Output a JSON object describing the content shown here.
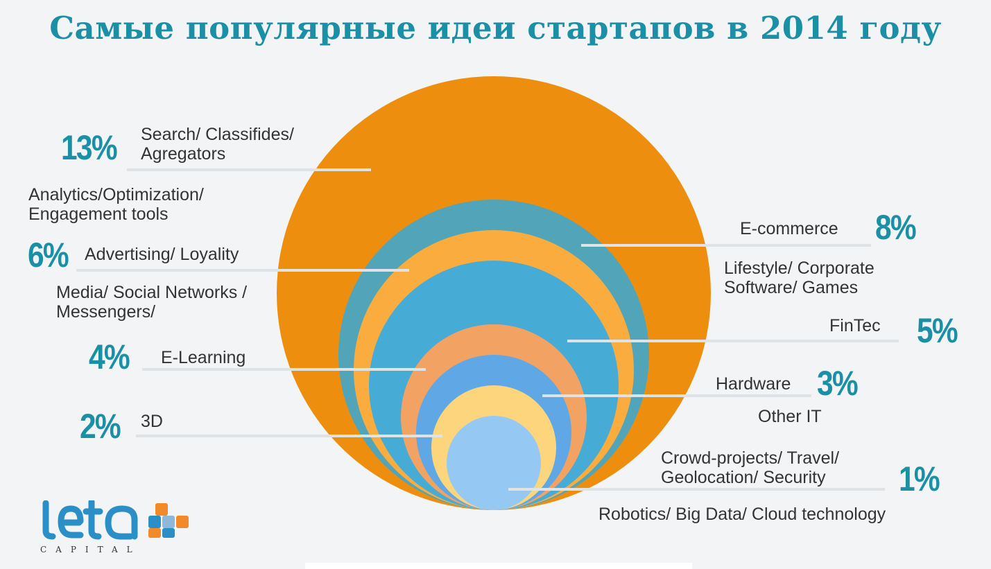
{
  "title": "Самые популярные идеи стартапов в 2014 году",
  "logo": {
    "text": "CAPITAL",
    "brand": "leta"
  },
  "colors": {
    "accent": "#1a8fa6"
  },
  "chart_data": {
    "type": "nested-circles",
    "title": "Самые популярные идеи стартапов в 2014 году",
    "series": [
      {
        "value": 13,
        "label": "13%",
        "categories": [
          "Search/ Classifides/ Agregators",
          "Analytics/Optimization/ Engagement tools"
        ],
        "color": "#ee8e0e"
      },
      {
        "value": 8,
        "label": "8%",
        "categories": [
          "E-commerce",
          "Lifestyle/ Corporate Software/ Games"
        ],
        "color": "#52a5b8"
      },
      {
        "value": 6,
        "label": "6%",
        "categories": [
          "Advertising/ Loyality",
          "Media/ Social Networks / Messengers/"
        ],
        "color": "#fbac3f"
      },
      {
        "value": 5,
        "label": "5%",
        "categories": [
          "FinTec"
        ],
        "color": "#46abd5"
      },
      {
        "value": 4,
        "label": "4%",
        "categories": [
          "E-Learning"
        ],
        "color": "#f2a263"
      },
      {
        "value": 3,
        "label": "3%",
        "categories": [
          "Hardware",
          "Other IT"
        ],
        "color": "#5fa8e5"
      },
      {
        "value": 2,
        "label": "2%",
        "categories": [
          "3D"
        ],
        "color": "#fdd57d"
      },
      {
        "value": 1,
        "label": "1%",
        "categories": [
          "Crowd-projects/ Travel/ Geolocation/ Security",
          "Robotics/ Big Data/ Cloud technology"
        ],
        "color": "#95c8f3"
      }
    ]
  }
}
